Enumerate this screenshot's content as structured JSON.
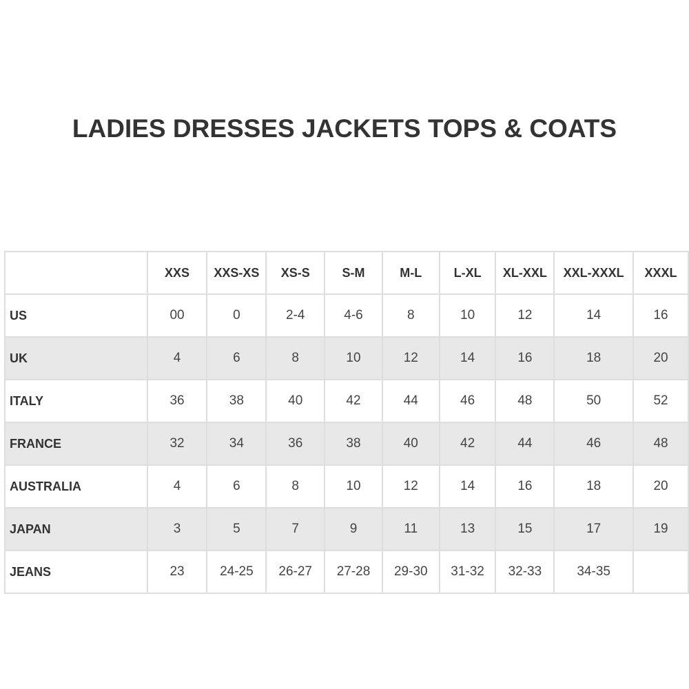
{
  "title": "LADIES DRESSES JACKETS TOPS & COATS",
  "table": {
    "header": [
      "XXS",
      "XXS-XS",
      "XS-S",
      "S-M",
      "M-L",
      "L-XL",
      "XL-XXL",
      "XXL-XXXL",
      "XXXL"
    ],
    "rows": [
      [
        "US",
        "00",
        "0",
        "2-4",
        "4-6",
        "8",
        "10",
        "12",
        "14",
        "16"
      ],
      [
        "UK",
        "4",
        "6",
        "8",
        "10",
        "12",
        "14",
        "16",
        "18",
        "20"
      ],
      [
        "ITALY",
        "36",
        "38",
        "40",
        "42",
        "44",
        "46",
        "48",
        "50",
        "52"
      ],
      [
        "FRANCE",
        "32",
        "34",
        "36",
        "38",
        "40",
        "42",
        "44",
        "46",
        "48"
      ],
      [
        "AUSTRALIA",
        "4",
        "6",
        "8",
        "10",
        "12",
        "14",
        "16",
        "18",
        "20"
      ],
      [
        "JAPAN",
        "3",
        "5",
        "7",
        "9",
        "11",
        "13",
        "15",
        "17",
        "19"
      ],
      [
        "JEANS",
        "23",
        "24-25",
        "26-27",
        "27-28",
        "29-30",
        "31-32",
        "32-33",
        "34-35",
        null
      ]
    ]
  }
}
